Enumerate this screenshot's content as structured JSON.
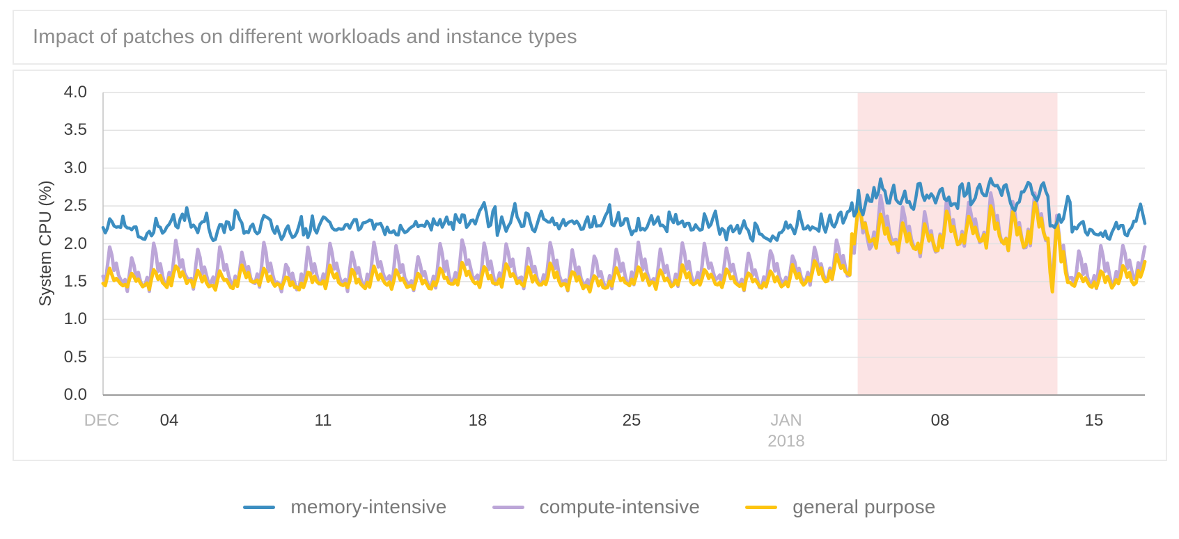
{
  "header": {
    "title": "Impact of patches on different workloads and instance types"
  },
  "chart_data": {
    "type": "line",
    "title": "Impact of patches on different workloads and instance types",
    "xlabel": "",
    "ylabel": "System CPU (%)",
    "ylim": [
      0.0,
      4.0
    ],
    "ytick_step": 0.5,
    "yticks": [
      "4.0",
      "3.5",
      "3.0",
      "2.5",
      "2.0",
      "1.5",
      "1.0",
      "0.5",
      "0.0"
    ],
    "xticks": [
      {
        "label": "DEC",
        "day": 0,
        "muted": true
      },
      {
        "label": "04",
        "day": 3,
        "muted": false
      },
      {
        "label": "11",
        "day": 10,
        "muted": false
      },
      {
        "label": "18",
        "day": 17,
        "muted": false
      },
      {
        "label": "25",
        "day": 24,
        "muted": false
      },
      {
        "label": "JAN",
        "day": 31,
        "muted": true,
        "sub": "2018"
      },
      {
        "label": "08",
        "day": 38,
        "muted": false
      },
      {
        "label": "15",
        "day": 45,
        "muted": false
      }
    ],
    "x_span_days": 47.3,
    "samples_per_day": 10,
    "grid": true,
    "legend_position": "bottom",
    "highlight_region": {
      "from_day": 34.26,
      "to_day": 43.33,
      "color": "#fce4e4"
    },
    "day_shape": [
      [
        0,
        0.35
      ],
      [
        0.1,
        0.1
      ],
      [
        0.2,
        0.55
      ],
      [
        0.3,
        1.0
      ],
      [
        0.4,
        0.8
      ],
      [
        0.5,
        0.45
      ],
      [
        0.6,
        0.62
      ],
      [
        0.72,
        0.3
      ],
      [
        0.85,
        0.12
      ],
      [
        1.0,
        0.35
      ]
    ],
    "series": [
      {
        "name": "compute-intensive",
        "color": "#bca6d8",
        "width": 5,
        "model": "daily-sawtooth",
        "daily_peak": [
          1.95,
          1.8,
          2.0,
          2.02,
          1.92,
          1.98,
          1.88,
          2.0,
          1.75,
          1.95,
          2.0,
          1.9,
          2.0,
          1.96,
          1.85,
          1.98,
          2.05,
          2.0,
          2.02,
          1.95,
          2.0,
          1.9,
          1.85,
          1.95,
          2.0,
          1.92,
          2.02,
          1.98,
          1.95,
          1.88,
          1.92,
          1.85,
          1.95,
          2.05,
          2.58,
          2.62,
          2.5,
          2.42,
          2.6,
          2.55,
          2.68,
          2.58,
          2.68,
          2.35,
          1.9,
          1.95,
          2.0,
          1.98
        ],
        "daily_valley": [
          1.4,
          1.35,
          1.33,
          1.42,
          1.36,
          1.34,
          1.4,
          1.35,
          1.32,
          1.38,
          1.35,
          1.33,
          1.4,
          1.36,
          1.34,
          1.38,
          1.42,
          1.36,
          1.4,
          1.35,
          1.38,
          1.34,
          1.32,
          1.36,
          1.4,
          1.35,
          1.38,
          1.42,
          1.36,
          1.34,
          1.38,
          1.4,
          1.42,
          1.48,
          1.8,
          1.9,
          1.82,
          1.76,
          1.86,
          1.92,
          1.88,
          1.82,
          1.9,
          1.35,
          1.38,
          1.36,
          1.42,
          1.6
        ]
      },
      {
        "name": "general purpose",
        "color": "#fdc411",
        "width": 5,
        "model": "daily-sawtooth",
        "daily_peak": [
          1.65,
          1.62,
          1.68,
          1.72,
          1.66,
          1.63,
          1.7,
          1.68,
          1.58,
          1.64,
          1.7,
          1.65,
          1.68,
          1.64,
          1.6,
          1.66,
          1.73,
          1.7,
          1.75,
          1.68,
          1.72,
          1.64,
          1.6,
          1.66,
          1.7,
          1.65,
          1.7,
          1.68,
          1.66,
          1.62,
          1.66,
          1.7,
          1.78,
          1.85,
          2.52,
          2.4,
          2.28,
          2.25,
          2.45,
          2.38,
          2.52,
          2.42,
          2.55,
          2.3,
          1.62,
          1.66,
          1.7,
          1.75
        ],
        "daily_valley": [
          1.42,
          1.4,
          1.38,
          1.44,
          1.4,
          1.38,
          1.43,
          1.4,
          1.37,
          1.41,
          1.39,
          1.38,
          1.42,
          1.4,
          1.38,
          1.41,
          1.44,
          1.4,
          1.42,
          1.39,
          1.41,
          1.38,
          1.36,
          1.4,
          1.42,
          1.39,
          1.41,
          1.43,
          1.4,
          1.38,
          1.41,
          1.42,
          1.45,
          1.52,
          1.92,
          1.88,
          1.84,
          1.86,
          1.9,
          1.96,
          1.9,
          1.86,
          1.94,
          1.28,
          1.4,
          1.38,
          1.42,
          1.55
        ]
      },
      {
        "name": "memory-intensive",
        "color": "#3c8ec1",
        "width": 4.5,
        "model": "noisy-band",
        "daily_mid": [
          2.2,
          2.15,
          2.18,
          2.24,
          2.2,
          2.16,
          2.22,
          2.25,
          2.14,
          2.18,
          2.22,
          2.19,
          2.24,
          2.2,
          2.17,
          2.25,
          2.28,
          2.32,
          2.38,
          2.3,
          2.24,
          2.26,
          2.28,
          2.24,
          2.22,
          2.25,
          2.28,
          2.24,
          2.2,
          2.16,
          2.14,
          2.18,
          2.28,
          2.35,
          2.6,
          2.66,
          2.55,
          2.6,
          2.58,
          2.64,
          2.7,
          2.62,
          2.68,
          2.32,
          2.22,
          2.18,
          2.25,
          2.32
        ],
        "daily_noise": [
          0.1,
          0.09,
          0.1,
          0.11,
          0.1,
          0.09,
          0.1,
          0.1,
          0.09,
          0.1,
          0.11,
          0.1,
          0.1,
          0.09,
          0.1,
          0.11,
          0.12,
          0.15,
          0.16,
          0.13,
          0.11,
          0.1,
          0.1,
          0.1,
          0.09,
          0.1,
          0.11,
          0.1,
          0.1,
          0.09,
          0.09,
          0.1,
          0.12,
          0.13,
          0.15,
          0.14,
          0.13,
          0.14,
          0.13,
          0.14,
          0.14,
          0.13,
          0.14,
          0.12,
          0.1,
          0.09,
          0.1,
          0.1
        ]
      }
    ]
  },
  "legend": {
    "items": [
      {
        "label": "memory-intensive",
        "color": "#3c8ec1"
      },
      {
        "label": "compute-intensive",
        "color": "#bca6d8"
      },
      {
        "label": "general purpose",
        "color": "#fdc411"
      }
    ]
  }
}
